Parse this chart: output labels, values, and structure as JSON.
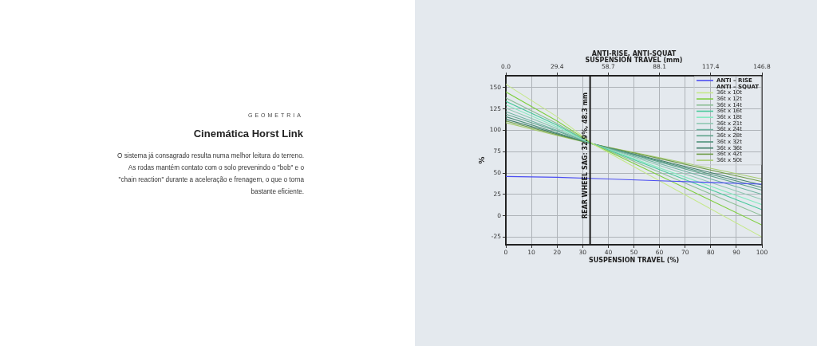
{
  "chart_data": {
    "type": "line",
    "title": "ANTI-RISE, ANTI-SQUAT",
    "xlabel": "SUSPENSION TRAVEL (%)",
    "x2label": "SUSPENSION TRAVEL (mm)",
    "ylabel": "%",
    "legend_title": "ANTI – SQUAT",
    "annotations": [
      "GEOMETRIA",
      "Cinemática Horst Link",
      "O sistema já consagrado resulta numa melhor leitura do terreno. As rodas mantém contato com o solo prevenindo o \"bob\" e o \"chain reaction\" durante a aceleração e frenagem, o que o torna bastante eficiente."
    ],
    "xlim": [
      0,
      100
    ],
    "xticks": [
      0,
      10,
      20,
      30,
      40,
      50,
      60,
      70,
      80,
      90,
      100
    ],
    "x2lim": [
      0,
      146.8
    ],
    "x2ticks": [
      {
        "value": 0,
        "label": "0.0"
      },
      29.4,
      58.7,
      88.1,
      117.4,
      146.8
    ],
    "ylim": [
      -34,
      164
    ],
    "yticks": [
      -25,
      0,
      25,
      50,
      75,
      100,
      125,
      150
    ],
    "grid": true,
    "legend": "top right",
    "marker": "none",
    "line_style": "solid",
    "ref_lines": [
      {
        "axis": "x",
        "value": 32.9,
        "label": "REAR WHEEL SAG: 32.9%, 48.3 mm",
        "color": "#1a1a1a"
      }
    ],
    "series": [
      {
        "name": "ANTI – RISE",
        "color": "#4b4df2",
        "x": [
          0,
          20,
          40,
          60,
          80,
          100
        ],
        "values": [
          46,
          45,
          43,
          41,
          39,
          37
        ]
      },
      {
        "name": "36t x 10t",
        "color": "#c5e88a",
        "x": [
          0,
          20,
          34,
          60,
          100
        ],
        "values": [
          154,
          116,
          84,
          41,
          -25
        ]
      },
      {
        "name": "36t x 12t",
        "color": "#7fcf3f",
        "x": [
          0,
          20,
          34,
          60,
          100
        ],
        "values": [
          145,
          111,
          84,
          47,
          -11
        ]
      },
      {
        "name": "36t x 14t",
        "color": "#8dbf96",
        "x": [
          0,
          20,
          34,
          60,
          100
        ],
        "values": [
          138,
          108,
          84,
          51,
          0
        ]
      },
      {
        "name": "36t x 16t",
        "color": "#49c99a",
        "x": [
          0,
          20,
          34,
          60,
          100
        ],
        "values": [
          134,
          106,
          84,
          54,
          7
        ]
      },
      {
        "name": "36t x 18t",
        "color": "#86eac0",
        "x": [
          0,
          20,
          34,
          60,
          100
        ],
        "values": [
          130,
          104,
          84,
          56,
          13
        ]
      },
      {
        "name": "36t x 21t",
        "color": "#8fc8b2",
        "x": [
          0,
          20,
          34,
          60,
          100
        ],
        "values": [
          126,
          102,
          84,
          59,
          19
        ]
      },
      {
        "name": "36t x 24t",
        "color": "#6db3a0",
        "x": [
          0,
          20,
          34,
          60,
          100
        ],
        "values": [
          122,
          100,
          84,
          61,
          25
        ]
      },
      {
        "name": "36t x 28t",
        "color": "#5fa48c",
        "x": [
          0,
          20,
          34,
          60,
          100
        ],
        "values": [
          119,
          99,
          84,
          63,
          30
        ]
      },
      {
        "name": "36t x 32t",
        "color": "#4e917a",
        "x": [
          0,
          20,
          34,
          60,
          100
        ],
        "values": [
          116,
          97,
          84,
          64,
          33
        ]
      },
      {
        "name": "36t x 36t",
        "color": "#3f7d67",
        "x": [
          0,
          20,
          34,
          60,
          100
        ],
        "values": [
          113,
          96,
          84,
          65,
          36
        ]
      },
      {
        "name": "36t x 42t",
        "color": "#6f9c48",
        "x": [
          0,
          20,
          34,
          60,
          100
        ],
        "values": [
          111,
          95,
          84,
          67,
          40
        ]
      },
      {
        "name": "36t x 50t",
        "color": "#a6cc6e",
        "x": [
          0,
          20,
          34,
          60,
          100
        ],
        "values": [
          109,
          94,
          84,
          68,
          43
        ]
      }
    ]
  }
}
